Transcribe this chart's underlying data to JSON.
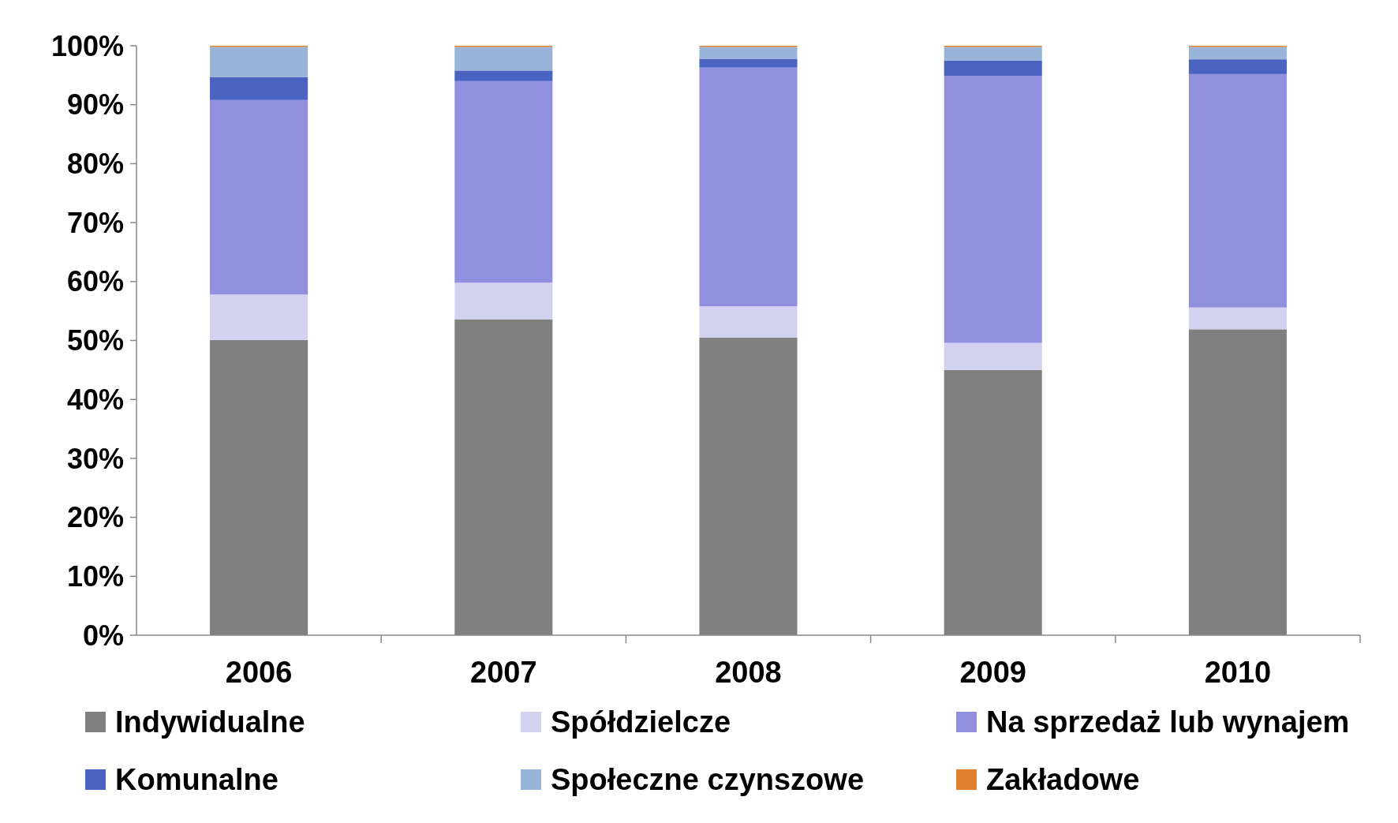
{
  "chart_data": {
    "type": "bar",
    "stacked": true,
    "categories": [
      "2006",
      "2007",
      "2008",
      "2009",
      "2010"
    ],
    "series": [
      {
        "name": "Indywidualne",
        "color": "#808080",
        "values": [
          50.1,
          53.6,
          50.5,
          45.0,
          51.9
        ]
      },
      {
        "name": "Spółdzielcze",
        "color": "#d3d1f0",
        "values": [
          7.7,
          6.2,
          5.3,
          4.6,
          3.7
        ]
      },
      {
        "name": "Na sprzedaż lub wynajem",
        "color": "#9090de",
        "values": [
          33.0,
          34.2,
          40.5,
          45.3,
          39.6
        ]
      },
      {
        "name": "Komunalne",
        "color": "#4a62c0",
        "values": [
          3.9,
          1.8,
          1.5,
          2.6,
          2.5
        ]
      },
      {
        "name": "Społeczne czynszowe",
        "color": "#98b4d9",
        "values": [
          5.1,
          4.0,
          2.0,
          2.3,
          2.1
        ]
      },
      {
        "name": "Zakładowe",
        "color": "#e0802e",
        "values": [
          0.2,
          0.2,
          0.2,
          0.2,
          0.2
        ]
      }
    ],
    "ylim": [
      0,
      100
    ],
    "yticks": [
      {
        "value": 0,
        "label": "0%"
      },
      {
        "value": 10,
        "label": "10%"
      },
      {
        "value": 20,
        "label": "20%"
      },
      {
        "value": 30,
        "label": "30%"
      },
      {
        "value": 40,
        "label": "40%"
      },
      {
        "value": 50,
        "label": "50%"
      },
      {
        "value": 60,
        "label": "60%"
      },
      {
        "value": 70,
        "label": "70%"
      },
      {
        "value": 80,
        "label": "80%"
      },
      {
        "value": 90,
        "label": "90%"
      },
      {
        "value": 100,
        "label": "100%"
      }
    ],
    "grid": false,
    "legend": "bottom"
  }
}
